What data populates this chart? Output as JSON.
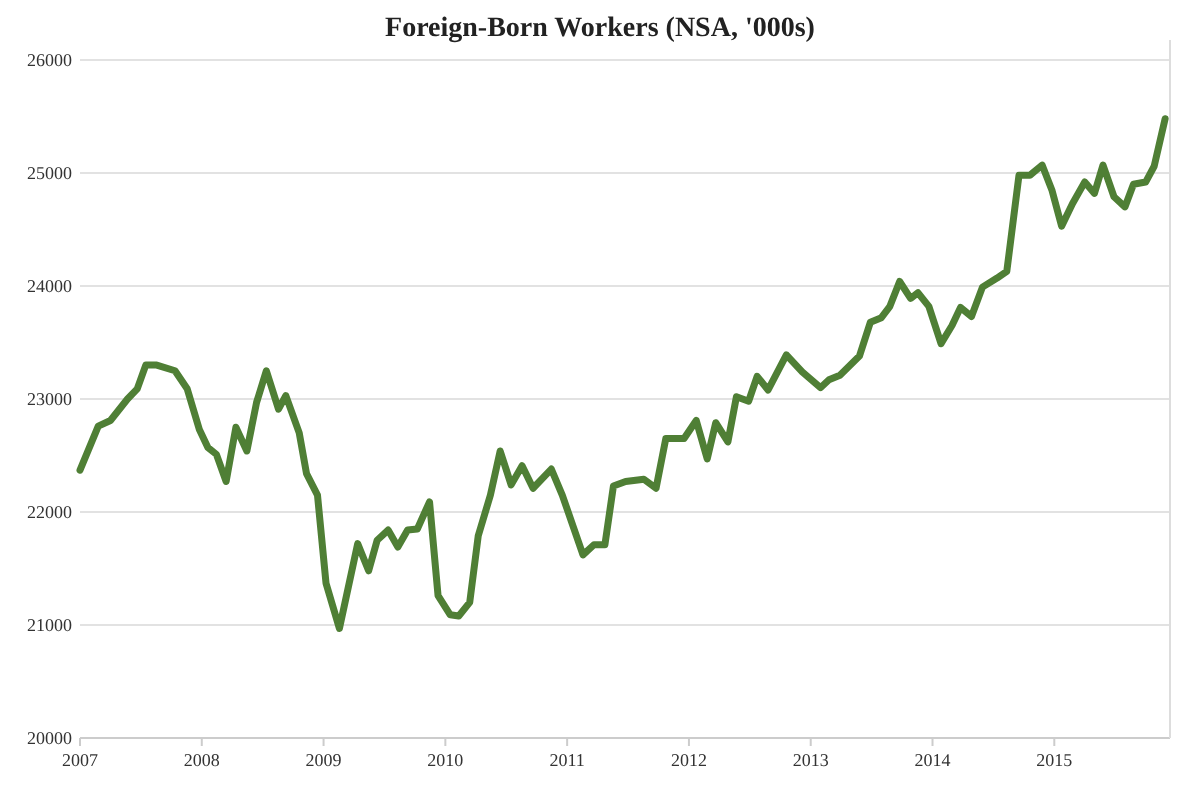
{
  "chart_data": {
    "type": "line",
    "title": "Foreign-Born Workers (NSA, '000s)",
    "x": [
      2007.0,
      2007.15,
      2007.25,
      2007.39,
      2007.47,
      2007.54,
      2007.63,
      2007.78,
      2007.88,
      2007.98,
      2008.05,
      2008.12,
      2008.2,
      2008.28,
      2008.37,
      2008.45,
      2008.53,
      2008.63,
      2008.69,
      2008.8,
      2008.86,
      2008.95,
      2009.02,
      2009.13,
      2009.28,
      2009.37,
      2009.44,
      2009.53,
      2009.61,
      2009.69,
      2009.77,
      2009.87,
      2009.94,
      2010.04,
      2010.11,
      2010.2,
      2010.27,
      2010.37,
      2010.45,
      2010.54,
      2010.63,
      2010.72,
      2010.87,
      2010.96,
      2011.13,
      2011.22,
      2011.31,
      2011.38,
      2011.48,
      2011.63,
      2011.73,
      2011.81,
      2011.96,
      2012.06,
      2012.15,
      2012.22,
      2012.32,
      2012.39,
      2012.49,
      2012.56,
      2012.65,
      2012.8,
      2012.93,
      2013.08,
      2013.15,
      2013.24,
      2013.4,
      2013.49,
      2013.58,
      2013.65,
      2013.73,
      2013.82,
      2013.88,
      2013.97,
      2014.07,
      2014.16,
      2014.23,
      2014.32,
      2014.41,
      2014.53,
      2014.61,
      2014.71,
      2014.8,
      2014.9,
      2014.98,
      2015.06,
      2015.15,
      2015.25,
      2015.33,
      2015.4,
      2015.49,
      2015.58,
      2015.65,
      2015.75,
      2015.82,
      2015.91
    ],
    "series": [
      {
        "color": "#4f7f35",
        "values": [
          22370,
          22760,
          22810,
          23000,
          23090,
          23300,
          23300,
          23250,
          23090,
          22730,
          22570,
          22510,
          22270,
          22750,
          22540,
          22970,
          23250,
          22910,
          23030,
          22700,
          22340,
          22150,
          21370,
          20970,
          21720,
          21480,
          21750,
          21840,
          21690,
          21840,
          21850,
          22090,
          21260,
          21090,
          21080,
          21200,
          21790,
          22150,
          22540,
          22240,
          22410,
          22210,
          22380,
          22150,
          21620,
          21710,
          21710,
          22230,
          22270,
          22290,
          22210,
          22650,
          22650,
          22810,
          22470,
          22790,
          22620,
          23020,
          22980,
          23200,
          23080,
          23390,
          23240,
          23100,
          23170,
          23210,
          23380,
          23680,
          23720,
          23820,
          24040,
          23890,
          23940,
          23820,
          23490,
          23650,
          23810,
          23730,
          23990,
          24070,
          24130,
          24980,
          24980,
          25070,
          24850,
          24530,
          24730,
          24920,
          24820,
          25070,
          24790,
          24700,
          24900,
          24920,
          25060,
          25480
        ]
      }
    ],
    "xlim": [
      2007,
      2015.95
    ],
    "xticks": [
      2007,
      2008,
      2009,
      2010,
      2011,
      2012,
      2013,
      2014,
      2015
    ],
    "ylim": [
      20000,
      26000
    ],
    "yticks": [
      20000,
      21000,
      22000,
      23000,
      24000,
      25000,
      26000
    ],
    "grid": "y",
    "marker": "none",
    "line_style": "solid"
  }
}
